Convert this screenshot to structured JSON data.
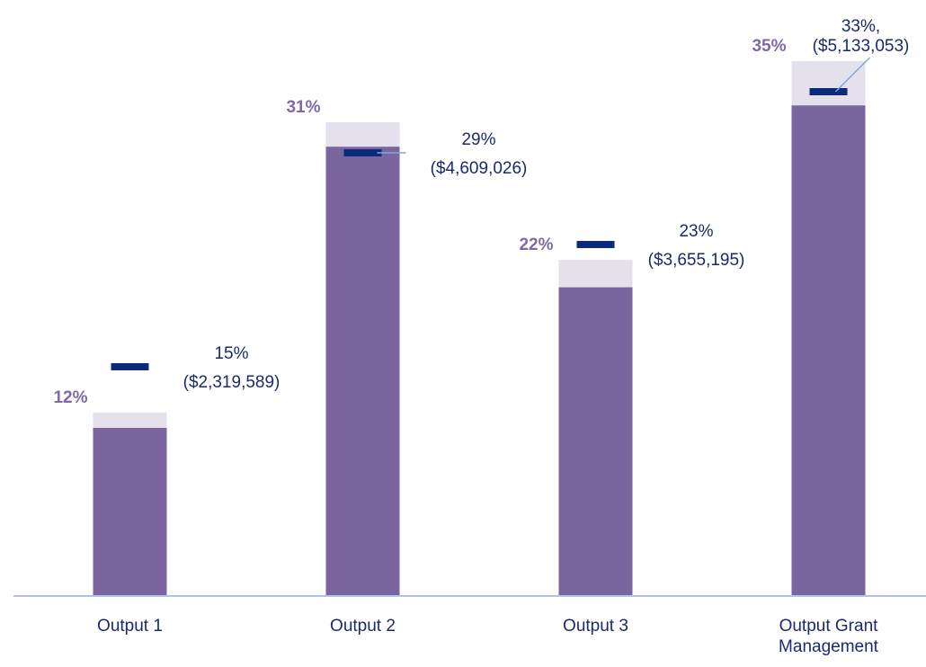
{
  "chart_data": {
    "type": "bar",
    "categories": [
      "Output 1",
      "Output 2",
      "Output 3",
      "Output Grant Management"
    ],
    "ylim": [
      0,
      39
    ],
    "series": [
      {
        "color": "#e4e0ec",
        "values": [
          12,
          31,
          22,
          35
        ],
        "value_labels": [
          "12%",
          "31%",
          "22%",
          "35%"
        ],
        "label_color": "#7f6aa6"
      },
      {
        "color": "#7a659e",
        "values": [
          11,
          29.4,
          20.2,
          32.1
        ]
      }
    ],
    "targets": {
      "color": "#0b2a7a",
      "values": [
        15,
        29,
        23,
        33
      ],
      "value_labels": [
        [
          "15%",
          "($2,319,589)"
        ],
        [
          "29%",
          "($4,609,026)"
        ],
        [
          "23%",
          "($3,655,195)"
        ],
        [
          "33%,",
          "($5,133,053)"
        ]
      ],
      "label_color": "#1a2a6c"
    },
    "axis_color": "#aac4ea"
  }
}
